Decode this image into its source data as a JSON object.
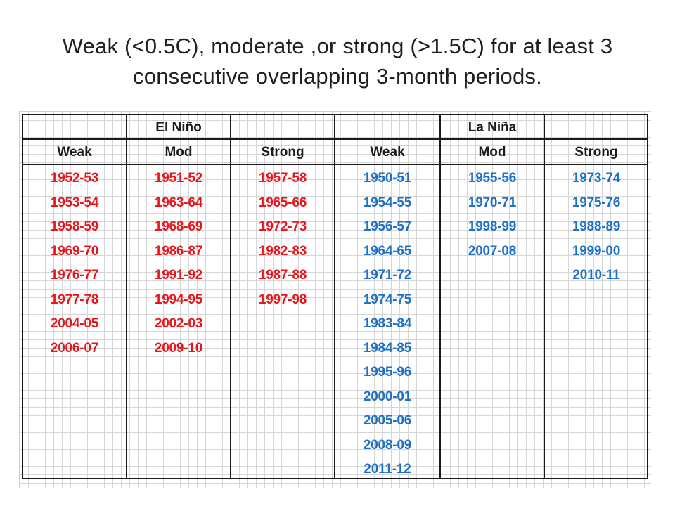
{
  "title": {
    "line1": "Weak (<0.5C), moderate ,or strong (>1.5C) for at least 3",
    "line2": "consecutive overlapping 3-month periods."
  },
  "colors": {
    "el_nino": "#e8151b",
    "la_nina": "#1c70c8",
    "grid_lines": "#1a1a1a"
  },
  "table": {
    "groups": {
      "el_nino": "El Niño",
      "la_nina": "La Niña"
    },
    "columns": [
      {
        "group": "el_nino",
        "header": "Weak",
        "years": [
          "1952-53",
          "1953-54",
          "1958-59",
          "1969-70",
          "1976-77",
          "1977-78",
          "2004-05",
          "2006-07"
        ]
      },
      {
        "group": "el_nino",
        "header": "Mod",
        "years": [
          "1951-52",
          "1963-64",
          "1968-69",
          "1986-87",
          "1991-92",
          "1994-95",
          "2002-03",
          "2009-10"
        ]
      },
      {
        "group": "el_nino",
        "header": "Strong",
        "years": [
          "1957-58",
          "1965-66",
          "1972-73",
          "1982-83",
          "1987-88",
          "1997-98"
        ]
      },
      {
        "group": "la_nina",
        "header": "Weak",
        "years": [
          "1950-51",
          "1954-55",
          "1956-57",
          "1964-65",
          "1971-72",
          "1974-75",
          "1983-84",
          "1984-85",
          "1995-96",
          "2000-01",
          "2005-06",
          "2008-09",
          "2011-12"
        ]
      },
      {
        "group": "la_nina",
        "header": "Mod",
        "years": [
          "1955-56",
          "1970-71",
          "1998-99",
          "2007-08"
        ]
      },
      {
        "group": "la_nina",
        "header": "Strong",
        "years": [
          "1973-74",
          "1975-76",
          "1988-89",
          "1999-00",
          "2010-11"
        ]
      }
    ]
  }
}
